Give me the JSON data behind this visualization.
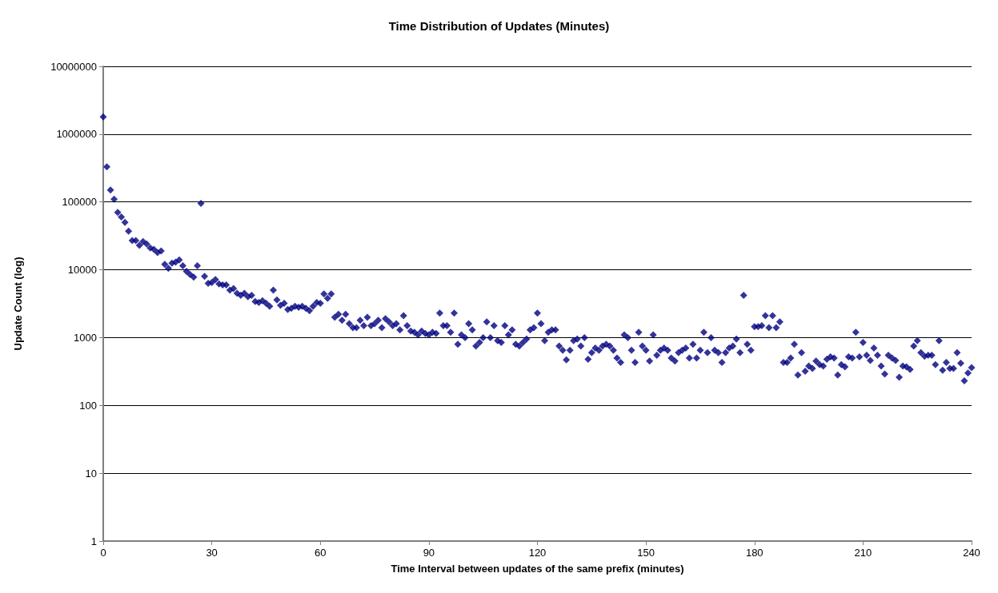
{
  "chart_data": {
    "type": "scatter",
    "title": "Time Distribution of Updates (Minutes)",
    "xlabel": "Time Interval between updates of the same prefix (minutes)",
    "ylabel": "Update Count (log)",
    "x": [
      0,
      1,
      2,
      3,
      4,
      5,
      6,
      7,
      8,
      9,
      10,
      11,
      12,
      13,
      14,
      15,
      16,
      17,
      18,
      19,
      20,
      21,
      22,
      23,
      24,
      25,
      26,
      27,
      28,
      29,
      30,
      31,
      32,
      33,
      34,
      35,
      36,
      37,
      38,
      39,
      40,
      41,
      42,
      43,
      44,
      45,
      46,
      47,
      48,
      49,
      50,
      51,
      52,
      53,
      54,
      55,
      56,
      57,
      58,
      59,
      60,
      61,
      62,
      63,
      64,
      65,
      66,
      67,
      68,
      69,
      70,
      71,
      72,
      73,
      74,
      75,
      76,
      77,
      78,
      79,
      80,
      81,
      82,
      83,
      84,
      85,
      86,
      87,
      88,
      89,
      90,
      91,
      92,
      93,
      94,
      95,
      96,
      97,
      98,
      99,
      100,
      101,
      102,
      103,
      104,
      105,
      106,
      107,
      108,
      109,
      110,
      111,
      112,
      113,
      114,
      115,
      116,
      117,
      118,
      119,
      120,
      121,
      122,
      123,
      124,
      125,
      126,
      127,
      128,
      129,
      130,
      131,
      132,
      133,
      134,
      135,
      136,
      137,
      138,
      139,
      140,
      141,
      142,
      143,
      144,
      145,
      146,
      147,
      148,
      149,
      150,
      151,
      152,
      153,
      154,
      155,
      156,
      157,
      158,
      159,
      160,
      161,
      162,
      163,
      164,
      165,
      166,
      167,
      168,
      169,
      170,
      171,
      172,
      173,
      174,
      175,
      176,
      177,
      178,
      179,
      180,
      181,
      182,
      183,
      184,
      185,
      186,
      187,
      188,
      189,
      190,
      191,
      192,
      193,
      194,
      195,
      196,
      197,
      198,
      199,
      200,
      201,
      202,
      203,
      204,
      205,
      206,
      207,
      208,
      209,
      210,
      211,
      212,
      213,
      214,
      215,
      216,
      217,
      218,
      219,
      220,
      221,
      222,
      223,
      224,
      225,
      226,
      227,
      228,
      229,
      230,
      231,
      232,
      233,
      234,
      235,
      236,
      237,
      238,
      239,
      240
    ],
    "values": [
      1800000,
      330000,
      150000,
      110000,
      70000,
      60000,
      50000,
      37000,
      27000,
      27000,
      23000,
      26000,
      24000,
      21000,
      20000,
      18000,
      19000,
      12000,
      10500,
      12500,
      13000,
      14000,
      11500,
      9500,
      8500,
      7800,
      11500,
      95000,
      8000,
      6300,
      6500,
      7200,
      6200,
      6000,
      6000,
      5000,
      5300,
      4500,
      4200,
      4500,
      4000,
      4200,
      3400,
      3300,
      3500,
      3200,
      2900,
      5000,
      3600,
      3000,
      3200,
      2600,
      2700,
      2900,
      2800,
      2900,
      2700,
      2500,
      2900,
      3300,
      3200,
      4400,
      3800,
      4400,
      2000,
      2200,
      1800,
      2200,
      1600,
      1400,
      1400,
      1800,
      1500,
      2000,
      1500,
      1600,
      1800,
      1400,
      1900,
      1700,
      1500,
      1600,
      1300,
      2100,
      1500,
      1250,
      1200,
      1100,
      1250,
      1150,
      1100,
      1200,
      1150,
      2300,
      1500,
      1500,
      1200,
      2300,
      800,
      1100,
      1000,
      1600,
      1300,
      750,
      850,
      1000,
      1700,
      1000,
      1500,
      900,
      850,
      1500,
      1100,
      1300,
      800,
      750,
      850,
      950,
      1300,
      1400,
      2300,
      1600,
      900,
      1200,
      1300,
      1300,
      750,
      650,
      470,
      650,
      900,
      950,
      750,
      1000,
      480,
      600,
      700,
      650,
      750,
      800,
      750,
      650,
      500,
      430,
      1100,
      1000,
      650,
      430,
      1200,
      750,
      650,
      450,
      1100,
      550,
      650,
      700,
      650,
      500,
      450,
      600,
      650,
      700,
      500,
      800,
      500,
      650,
      1200,
      600,
      1000,
      650,
      600,
      430,
      600,
      700,
      750,
      950,
      600,
      4200,
      800,
      650,
      1450,
      1450,
      1500,
      2100,
      1400,
      2100,
      1400,
      1700,
      430,
      430,
      500,
      800,
      280,
      600,
      320,
      380,
      350,
      450,
      400,
      380,
      480,
      520,
      500,
      280,
      400,
      370,
      520,
      500,
      1200,
      520,
      850,
      550,
      460,
      700,
      550,
      380,
      290,
      550,
      500,
      460,
      260,
      380,
      370,
      340,
      750,
      900,
      600,
      530,
      550,
      550,
      400,
      900,
      330,
      430,
      350,
      350,
      600,
      420,
      230,
      300,
      360
    ],
    "color": "#000080",
    "marker": "diamond",
    "log": "y",
    "grid": "y",
    "xlim": [
      0,
      240
    ],
    "xticks": [
      0,
      30,
      60,
      90,
      120,
      150,
      180,
      210,
      240
    ],
    "ylim": [
      1,
      10000000
    ],
    "yticks": [
      1,
      10,
      100,
      1000,
      10000,
      100000,
      1000000,
      10000000
    ]
  }
}
